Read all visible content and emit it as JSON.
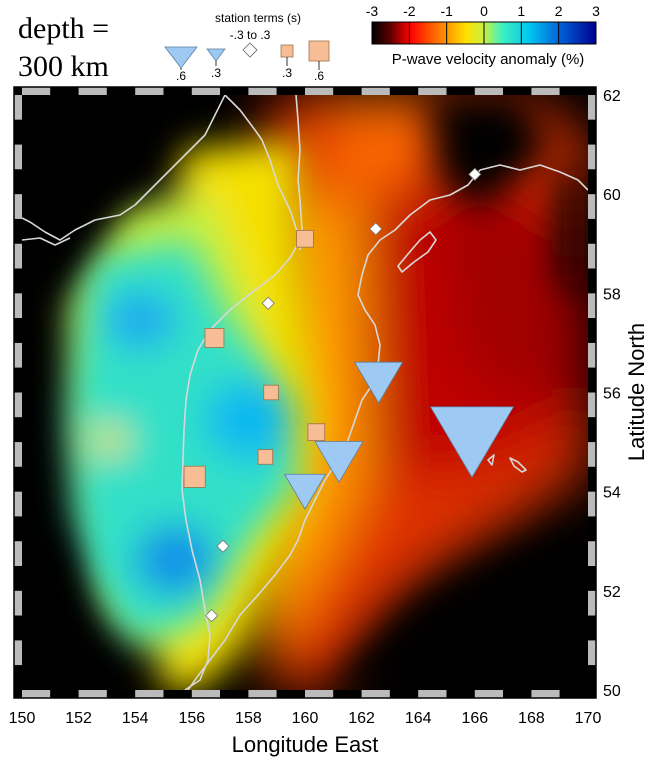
{
  "title": {
    "line1": "depth =",
    "line2": "300 km"
  },
  "station_terms": {
    "title": "station terms (s)",
    "neutral_label": "-.3 to .3",
    "symbols": [
      {
        "label": ".6",
        "shape": "triangle",
        "value": -0.6
      },
      {
        "label": ".3",
        "shape": "triangle",
        "value": -0.3
      },
      {
        "label": "",
        "shape": "diamond",
        "value": 0
      },
      {
        "label": ".3",
        "shape": "square",
        "value": 0.3
      },
      {
        "label": ".6",
        "shape": "square",
        "value": 0.6
      }
    ]
  },
  "colorbar": {
    "title": "P-wave velocity anomaly (%)",
    "ticks": [
      "-3",
      "-2",
      "-1",
      "0",
      "1",
      "2",
      "3"
    ]
  },
  "axes": {
    "xlabel": "Longitude East",
    "ylabel": "Latitude North",
    "xlim": [
      150,
      170
    ],
    "ylim": [
      50,
      62
    ],
    "xticks": [
      "150",
      "152",
      "154",
      "156",
      "158",
      "160",
      "162",
      "164",
      "166",
      "168",
      "170"
    ],
    "yticks": [
      "50",
      "52",
      "54",
      "56",
      "58",
      "60",
      "62"
    ]
  },
  "stations": [
    {
      "lon": 166.0,
      "lat": 60.4,
      "type": "diamond",
      "term": 0
    },
    {
      "lon": 162.5,
      "lat": 59.3,
      "type": "diamond",
      "term": 0
    },
    {
      "lon": 158.7,
      "lat": 57.8,
      "type": "diamond",
      "term": 0
    },
    {
      "lon": 157.1,
      "lat": 52.9,
      "type": "diamond",
      "term": 0
    },
    {
      "lon": 156.7,
      "lat": 51.5,
      "type": "diamond",
      "term": 0
    },
    {
      "lon": 160.0,
      "lat": 59.1,
      "type": "square",
      "term": 0.4
    },
    {
      "lon": 156.8,
      "lat": 57.1,
      "type": "square",
      "term": 0.5
    },
    {
      "lon": 158.8,
      "lat": 56.0,
      "type": "square",
      "term": 0.3
    },
    {
      "lon": 160.4,
      "lat": 55.2,
      "type": "square",
      "term": 0.4
    },
    {
      "lon": 158.6,
      "lat": 54.7,
      "type": "square",
      "term": 0.3
    },
    {
      "lon": 156.1,
      "lat": 54.3,
      "type": "square",
      "term": 0.6
    },
    {
      "lon": 162.6,
      "lat": 56.2,
      "type": "triangle",
      "term": -0.4
    },
    {
      "lon": 161.2,
      "lat": 54.6,
      "type": "triangle",
      "term": -0.4
    },
    {
      "lon": 160.0,
      "lat": 54.0,
      "type": "triangle",
      "term": -0.3
    },
    {
      "lon": 165.9,
      "lat": 55.0,
      "type": "triangle",
      "term": -0.9
    }
  ],
  "colors": {
    "background": "#000000",
    "coastline": "#d8d8d8",
    "station_triangle": "#9ec9f2",
    "station_square": "#f7be95",
    "station_diamond": "#ffffff"
  }
}
